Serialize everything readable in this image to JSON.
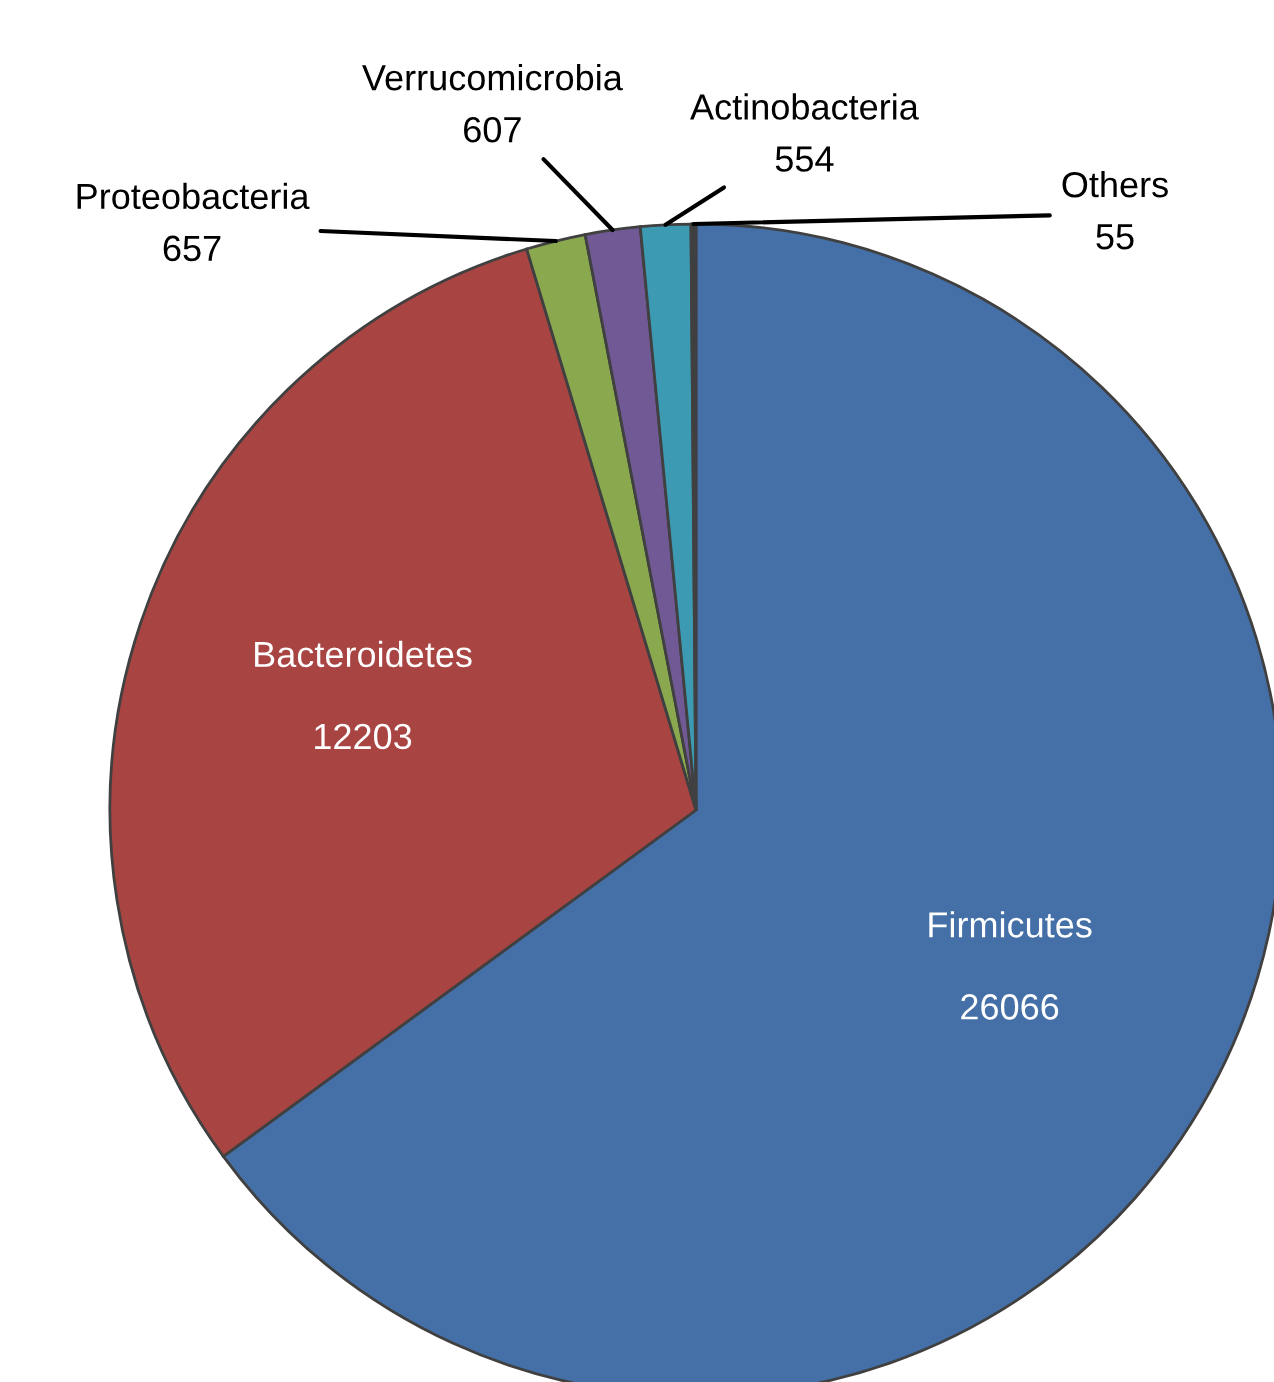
{
  "chart_data": {
    "type": "pie",
    "categories": [
      "Firmicutes",
      "Bacteroidetes",
      "Proteobacteria",
      "Verrucomicrobia",
      "Actinobacteria",
      "Others"
    ],
    "values": [
      26066,
      12203,
      657,
      607,
      554,
      55
    ],
    "colors": [
      "#4570a7",
      "#a84543",
      "#8aa94f",
      "#715995",
      "#3d9ab3",
      "#3f3f3f"
    ],
    "data_labels": true
  }
}
